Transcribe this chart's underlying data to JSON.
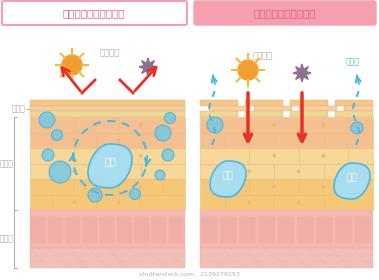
{
  "title_left": "バリア機能が正常な肌",
  "title_right": "バリア機能が壊れた肌",
  "label_sebum": "皮脂膜",
  "label_epidermis": "表　皮",
  "label_dermis": "真　皮",
  "label_water": "水分",
  "label_external": "外部刺激",
  "label_evaporation": "蒸　発",
  "bg_color": "#ffffff",
  "title_left_border": "#f4a0b0",
  "title_right_bg": "#f4a0b0",
  "title_text_color": "#e0607a",
  "sc_color1": "#f5c88a",
  "sc_color2": "#f0d0a0",
  "sc_color3": "#eed898",
  "ep_upper_color": "#f5c090",
  "ep_mid_color": "#f8d898",
  "ep_lower_color": "#f5c878",
  "dermis_pink": "#f5b8b0",
  "dermis_lower": "#f0c0b8",
  "dermis_sq_color": "#eeaaa0",
  "cell_border": "#e8a870",
  "ep_border": "#e8b880",
  "water_blue_fill": "#78c8e8",
  "water_blue_edge": "#50b8d8",
  "water_blue_light": "#a8ddf0",
  "circle_fill": "#78c8e8",
  "circle_edge": "#50b0d0",
  "arrow_red": "#e83028",
  "arrow_blue": "#50b8e0",
  "sun_color": "#f0a030",
  "sun_spike": "#f5b840",
  "star_color": "#907090",
  "label_gray": "#aaaaaa",
  "broken_sc_color": "#f8d0a0",
  "broken_sc_gap": "#f0e0c8"
}
